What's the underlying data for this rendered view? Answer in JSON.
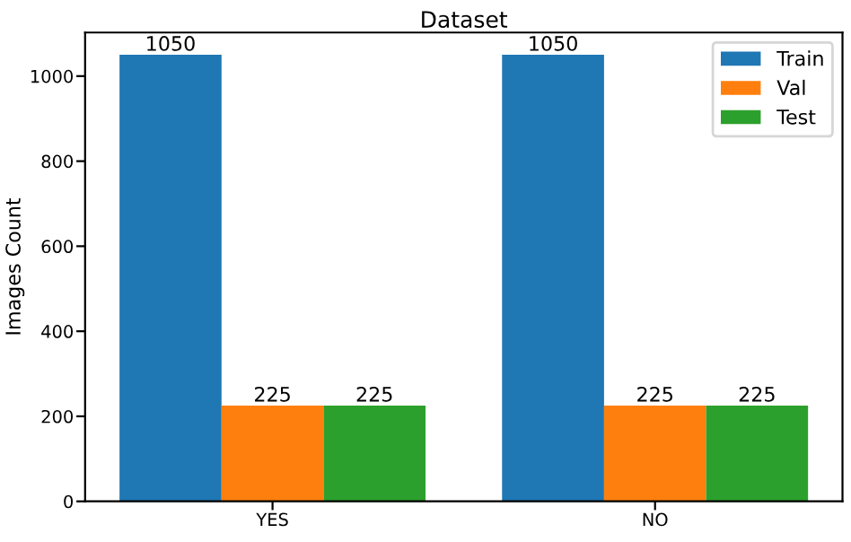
{
  "chart_data": {
    "type": "bar",
    "title": "Dataset",
    "ylabel": "Images Count",
    "categories": [
      "YES",
      "NO"
    ],
    "series": [
      {
        "name": "Train",
        "color": "#1f77b4",
        "values": [
          1050,
          1050
        ]
      },
      {
        "name": "Val",
        "color": "#ff7f0e",
        "values": [
          225,
          225
        ]
      },
      {
        "name": "Test",
        "color": "#2ca02c",
        "values": [
          225,
          225
        ]
      }
    ],
    "ylim": [
      0,
      1102.5
    ],
    "yticks": [
      0,
      200,
      400,
      600,
      800,
      1000
    ],
    "data_labels": true,
    "legend": "top right",
    "grid": false
  }
}
